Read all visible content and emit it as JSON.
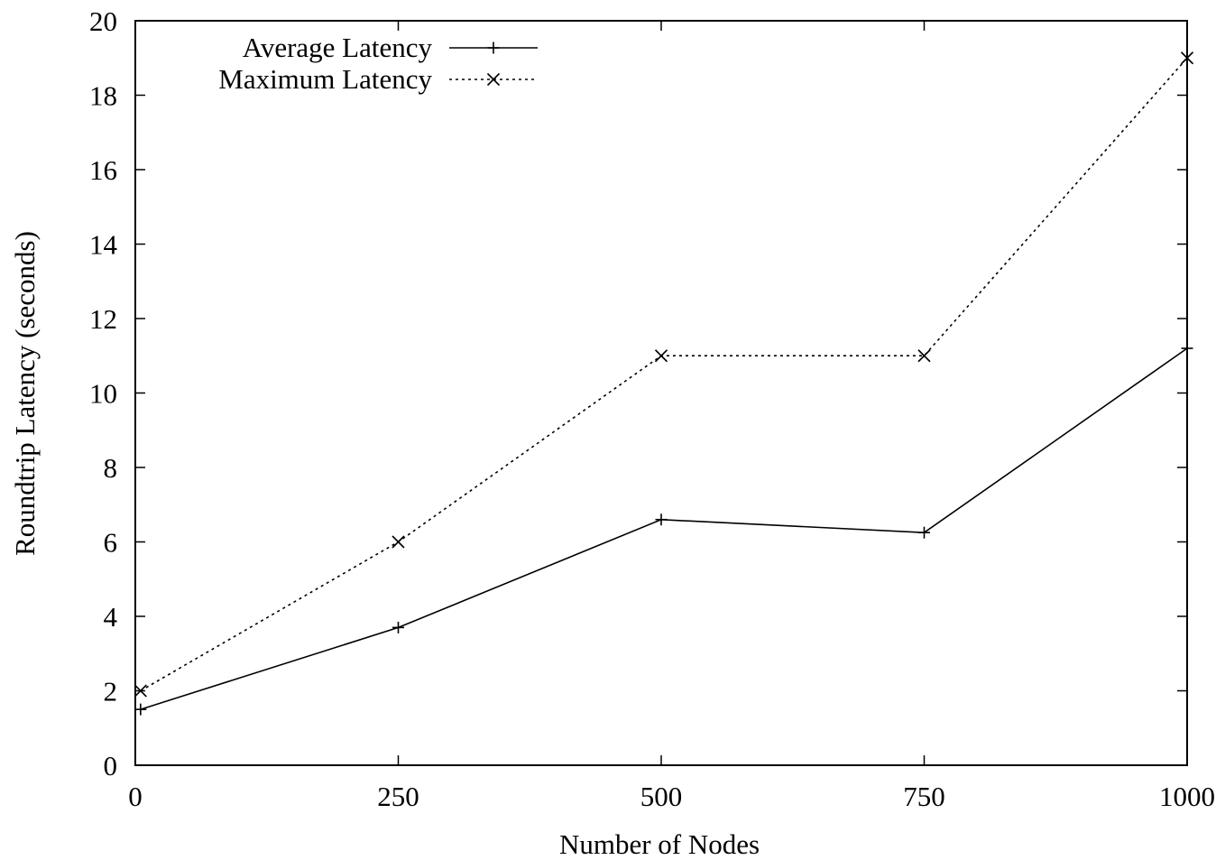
{
  "chart_data": {
    "type": "line",
    "title": "",
    "xlabel": "Number of Nodes",
    "ylabel": "Roundtrip Latency (seconds)",
    "xlim": [
      0,
      1000
    ],
    "ylim": [
      0,
      20
    ],
    "xticks": [
      0,
      250,
      500,
      750,
      1000
    ],
    "yticks": [
      0,
      2,
      4,
      6,
      8,
      10,
      12,
      14,
      16,
      18,
      20
    ],
    "grid": false,
    "legend_position": "top-left",
    "series": [
      {
        "name": "Average Latency",
        "marker": "plus",
        "line_style": "solid",
        "color": "#000000",
        "x": [
          5,
          250,
          500,
          750,
          1000
        ],
        "y": [
          1.5,
          3.7,
          6.6,
          6.25,
          11.2
        ]
      },
      {
        "name": "Maximum Latency",
        "marker": "cross",
        "line_style": "dotted",
        "color": "#000000",
        "x": [
          5,
          250,
          500,
          750,
          1000
        ],
        "y": [
          2,
          6,
          11,
          11,
          19
        ]
      }
    ]
  }
}
